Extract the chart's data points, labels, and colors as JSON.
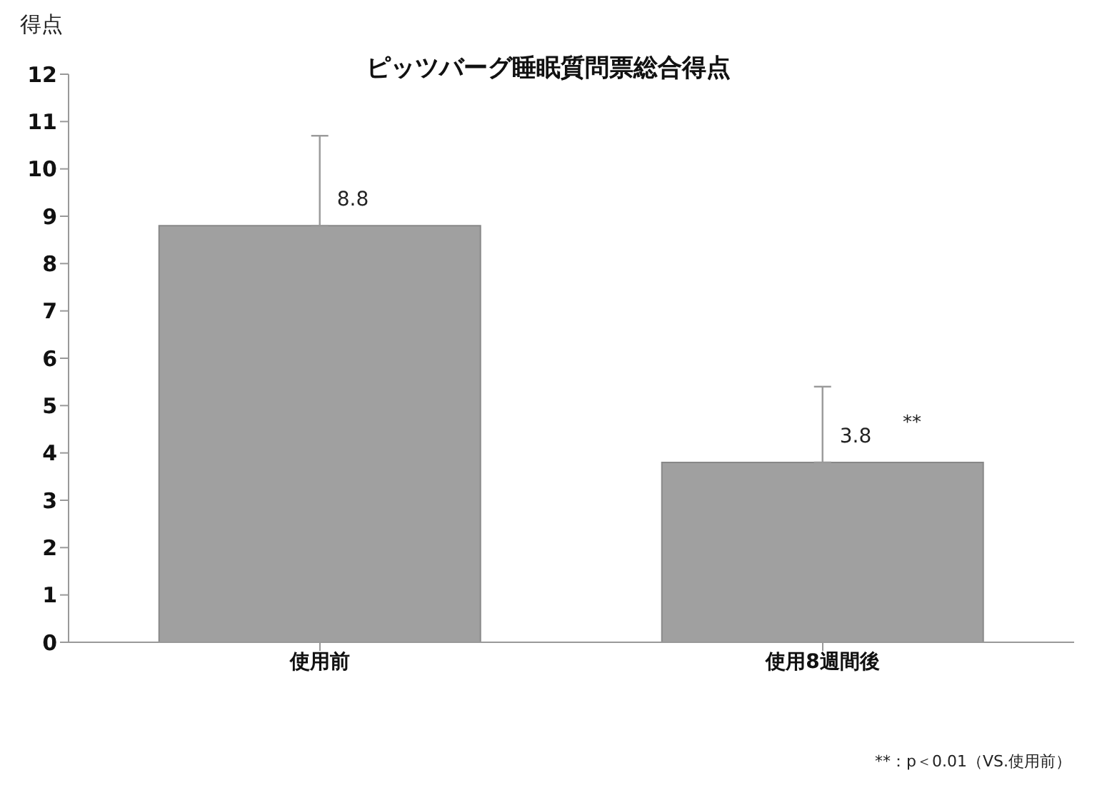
{
  "chart_data": {
    "type": "bar",
    "title": "ピッツバーグ睡眠質問票総合得点",
    "ylabel": "得点",
    "categories": [
      "使用前",
      "使用8週間後"
    ],
    "values": [
      8.8,
      3.8
    ],
    "color": "#a0a0a0",
    "errors": [
      [
        8.8,
        10.7
      ],
      [
        3.8,
        5.4
      ]
    ],
    "data_labels": true,
    "ylim": [
      0,
      12
    ],
    "yticks": [
      0,
      1,
      2,
      3,
      4,
      5,
      6,
      7,
      8,
      9,
      10,
      11,
      12
    ],
    "grid": false,
    "legend": false,
    "annotations": [
      "**",
      "**：p＜0.01（VS.使用前）"
    ]
  }
}
